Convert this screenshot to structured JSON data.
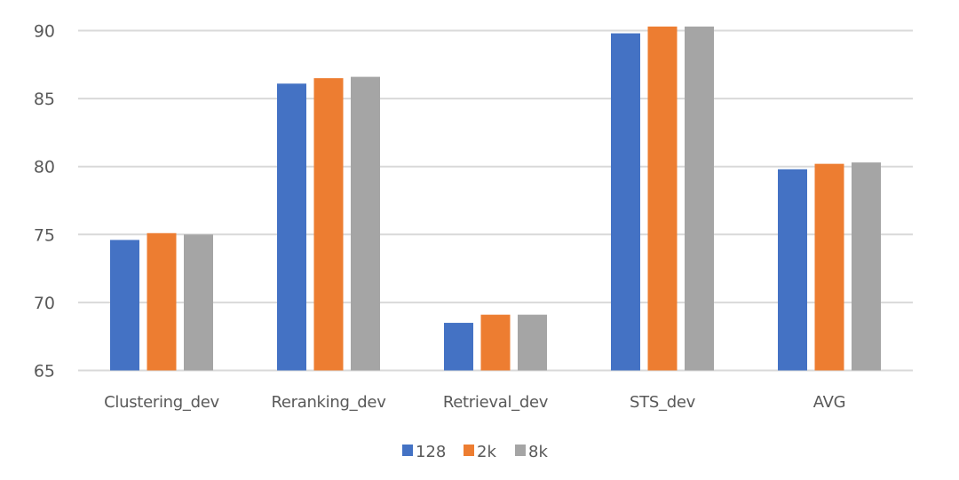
{
  "chart_data": {
    "type": "bar",
    "title": "",
    "xlabel": "",
    "ylabel": "",
    "categories": [
      "Clustering_dev",
      "Reranking_dev",
      "Retrieval_dev",
      "STS_dev",
      "AVG"
    ],
    "series": [
      {
        "name": "128",
        "color": "#4472c4",
        "values": [
          74.6,
          86.1,
          68.5,
          89.8,
          79.8
        ]
      },
      {
        "name": "2k",
        "color": "#ed7d31",
        "values": [
          75.1,
          86.5,
          69.1,
          90.3,
          80.2
        ]
      },
      {
        "name": "8k",
        "color": "#a5a5a5",
        "values": [
          75.0,
          86.6,
          69.1,
          90.3,
          80.3
        ]
      }
    ],
    "ylim": [
      65,
      90
    ],
    "yticks": [
      65,
      70,
      75,
      80,
      85,
      90
    ],
    "grid": true,
    "legend": "bottom-center"
  }
}
